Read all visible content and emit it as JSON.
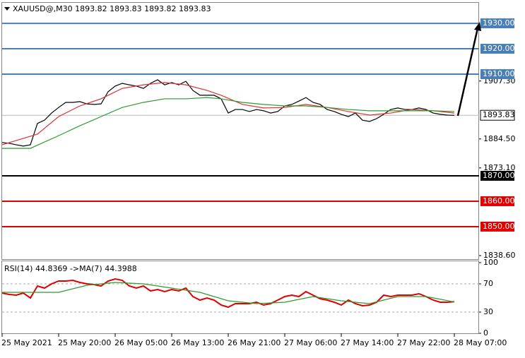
{
  "chart_data": [
    {
      "type": "line",
      "title": "XAUUSD@,M30  1893.82 1893.83 1893.82 1893.83",
      "categories": [
        "25 May 2021",
        null,
        null,
        null,
        null,
        null,
        null,
        null,
        "25 May 20:00",
        null,
        null,
        null,
        null,
        null,
        null,
        null,
        "26 May 05:00",
        null,
        null,
        null,
        null,
        null,
        null,
        null,
        "26 May 13:00",
        null,
        null,
        null,
        null,
        null,
        null,
        null,
        "26 May 21:00",
        null,
        null,
        null,
        null,
        null,
        null,
        null,
        "27 May 06:00",
        null,
        null,
        null,
        null,
        null,
        null,
        null,
        "27 May 14:00",
        null,
        null,
        null,
        null,
        null,
        null,
        null,
        "27 May 22:00",
        null,
        null,
        null,
        null,
        null,
        null,
        null,
        "28 May 07:00"
      ],
      "series": [
        {
          "color": "#000000",
          "values": [
            1883.1,
            1882.8,
            1882.2,
            1881.7,
            1882.2,
            1890.6,
            1891.9,
            1894.7,
            1896.9,
            1898.9,
            1898.9,
            1899.2,
            1898.3,
            1898.1,
            1898.3,
            1903.1,
            1905.3,
            1906.4,
            1905.8,
            1905.3,
            1904.4,
            1906.4,
            1907.8,
            1905.8,
            1906.7,
            1905.8,
            1907.2,
            1903.6,
            1901.7,
            1901.7,
            1901.7,
            1900.3,
            1894.7,
            1896.1,
            1896.1,
            1895.3,
            1896.1,
            1895.6,
            1894.7,
            1895.3,
            1897.5,
            1898.1,
            1899.4,
            1900.8,
            1898.9,
            1898.1,
            1896.1,
            1895.3,
            1894.2,
            1893.3,
            1894.7,
            1891.9,
            1891.4,
            1892.5,
            1894.2,
            1896.1,
            1896.7,
            1896.1,
            1896.1,
            1896.7,
            1896.1,
            1894.7,
            1894.2,
            1893.9,
            1893.8
          ]
        },
        {
          "color": "#e03030",
          "x": [
            0,
            5,
            8,
            11,
            14,
            17,
            20,
            23,
            26,
            29,
            31,
            34,
            37,
            40,
            43,
            46,
            49,
            52,
            55,
            58,
            61,
            64
          ],
          "values": [
            1882.2,
            1886.4,
            1893.3,
            1897.5,
            1900.3,
            1904.4,
            1905.8,
            1906.7,
            1905.8,
            1903.6,
            1901.7,
            1898.1,
            1896.7,
            1896.9,
            1898.1,
            1896.9,
            1895.3,
            1893.9,
            1894.7,
            1896.1,
            1895.6,
            1894.7
          ]
        },
        {
          "color": "#2e9b2e",
          "x": [
            0,
            4,
            8,
            11,
            14,
            17,
            20,
            23,
            26,
            29,
            31,
            34,
            37,
            40,
            43,
            46,
            49,
            52,
            55,
            58,
            61,
            64
          ],
          "values": [
            1880.8,
            1880.8,
            1885.8,
            1889.7,
            1893.3,
            1896.9,
            1898.9,
            1900.3,
            1900.3,
            1900.8,
            1900.3,
            1898.9,
            1898.1,
            1897.5,
            1897.5,
            1896.9,
            1896.1,
            1895.6,
            1895.6,
            1895.6,
            1895.6,
            1895.3
          ]
        }
      ],
      "ylim": [
        1837.2,
        1937.8
      ],
      "yticks": [
        {
          "value": 1907.3,
          "label": "1907.30"
        },
        {
          "value": 1884.5,
          "label": "1884.50"
        },
        {
          "value": 1873.1,
          "label": "1873.10"
        },
        {
          "value": 1838.6,
          "label": "1838.60"
        }
      ],
      "levels": [
        {
          "value": 1930,
          "label": "1930.00",
          "color": "#4a7fb5"
        },
        {
          "value": 1920,
          "label": "1920.00",
          "color": "#4a7fb5"
        },
        {
          "value": 1910,
          "label": "1910.00",
          "color": "#4a7fb5"
        },
        {
          "value": 1870,
          "label": "1870.00",
          "color": "#000000"
        },
        {
          "value": 1860,
          "label": "1860.00",
          "color": "#e00000"
        },
        {
          "value": 1850,
          "label": "1850.00",
          "color": "#e00000"
        }
      ],
      "last_price": {
        "value": 1893.83,
        "label": "1893.83"
      }
    },
    {
      "type": "line",
      "title": "RSI(14) 44.8369  ->MA(7) 44.3988",
      "series": [
        {
          "color": "#e00000",
          "values": [
            57,
            55,
            54,
            57,
            50,
            67,
            64,
            70,
            74,
            74,
            75,
            72,
            70,
            69,
            67,
            74,
            77,
            75,
            67,
            64,
            67,
            60,
            62,
            59,
            62,
            60,
            64,
            52,
            47,
            50,
            47,
            40,
            37,
            42,
            42,
            42,
            44,
            40,
            42,
            47,
            52,
            54,
            52,
            59,
            54,
            49,
            47,
            44,
            40,
            47,
            42,
            39,
            40,
            44,
            54,
            52,
            54,
            54,
            54,
            56,
            52,
            47,
            44,
            44,
            44.8
          ]
        },
        {
          "color": "#2e9b2e",
          "x": [
            0,
            8,
            12,
            16,
            20,
            24,
            28,
            32,
            36,
            40,
            44,
            48,
            52,
            56,
            60,
            64
          ],
          "values": [
            58,
            58,
            68,
            72,
            70,
            64,
            58,
            46,
            42,
            44,
            52,
            46,
            42,
            52,
            52,
            44.4
          ]
        }
      ],
      "ylim": [
        0,
        100
      ],
      "yticks": [
        100,
        70,
        30,
        0
      ]
    }
  ]
}
